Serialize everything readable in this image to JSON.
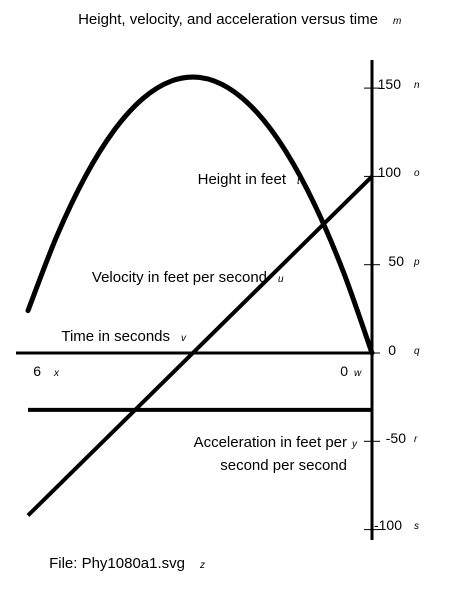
{
  "title": "Height, velocity, and acceleration versus time",
  "file_label": "File: Phy1080a1.svg",
  "annotation_letters": {
    "title": "m",
    "y150": "n",
    "height": "t",
    "y100": "o",
    "velocity": "u",
    "y50": "p",
    "time": "v",
    "y0": "q",
    "x6": "x",
    "x0": "w",
    "accel": "y",
    "yneg50": "r",
    "yneg100": "s",
    "file": "z"
  },
  "chart_data": {
    "type": "line",
    "title": "Height, velocity, and acceleration versus time",
    "x_axis": {
      "label": "Time in seconds",
      "ticks": [
        0,
        6
      ],
      "tick_labels": [
        "0",
        "6"
      ],
      "range": [
        0,
        6
      ],
      "direction": "reversed (0 on right, 6 on left)"
    },
    "y_axis": {
      "ticks": [
        150,
        100,
        50,
        0,
        -50,
        -100
      ],
      "tick_labels": [
        "150",
        "100",
        "50",
        "0",
        "-50",
        "-100"
      ],
      "range": [
        -100,
        150
      ]
    },
    "grid": false,
    "series": [
      {
        "name": "Height in feet",
        "x": [
          0,
          0.5,
          1,
          1.5,
          2,
          2.5,
          3,
          3.5,
          4,
          4.5,
          5,
          5.5,
          6
        ],
        "values": [
          0,
          46,
          84,
          114,
          136,
          150,
          156,
          154,
          144,
          126,
          100,
          66,
          24
        ]
      },
      {
        "name": "Velocity in feet per second",
        "x": [
          0,
          6
        ],
        "values": [
          100,
          -92
        ]
      },
      {
        "name": "Acceleration in feet per second per second",
        "x": [
          0,
          6
        ],
        "values": [
          -32.2,
          -32.2
        ]
      }
    ]
  }
}
